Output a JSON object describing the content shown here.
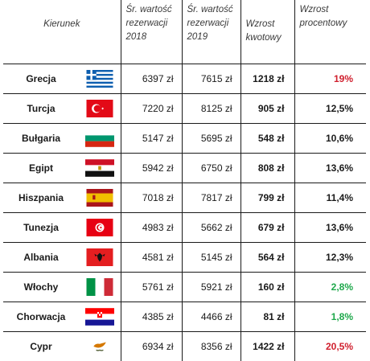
{
  "headers": {
    "destination": "Kierunek",
    "avg2018_line1": "Śr. wartość",
    "avg2018_line2": "rezerwacji",
    "avg2018_line3": "2018",
    "avg2019_line1": "Śr. wartość",
    "avg2019_line2": "rezerwacji",
    "avg2019_line3": "2019",
    "abs_line1": "Wzrost",
    "abs_line2": "kwotowy",
    "pct_line1": "Wzrost",
    "pct_line2": "procentowy"
  },
  "rows": [
    {
      "name": "Grecja",
      "flag": "greece-flag",
      "avg2018": "6397 zł",
      "avg2019": "7615 zł",
      "growth_abs": "1218 zł",
      "growth_pct": "19%",
      "pct_color": "#d0202e"
    },
    {
      "name": "Turcja",
      "flag": "turkey-flag",
      "avg2018": "7220 zł",
      "avg2019": "8125 zł",
      "growth_abs": "905 zł",
      "growth_pct": "12,5%",
      "pct_color": "#1a1a1a"
    },
    {
      "name": "Bułgaria",
      "flag": "bulgaria-flag",
      "avg2018": "5147 zł",
      "avg2019": "5695 zł",
      "growth_abs": "548 zł",
      "growth_pct": "10,6%",
      "pct_color": "#1a1a1a"
    },
    {
      "name": "Egipt",
      "flag": "egypt-flag",
      "avg2018": "5942 zł",
      "avg2019": "6750 zł",
      "growth_abs": "808 zł",
      "growth_pct": "13,6%",
      "pct_color": "#1a1a1a"
    },
    {
      "name": "Hiszpania",
      "flag": "spain-flag",
      "avg2018": "7018 zł",
      "avg2019": "7817 zł",
      "growth_abs": "799 zł",
      "growth_pct": "11,4%",
      "pct_color": "#1a1a1a"
    },
    {
      "name": "Tunezja",
      "flag": "tunisia-flag",
      "avg2018": "4983 zł",
      "avg2019": "5662 zł",
      "growth_abs": "679 zł",
      "growth_pct": "13,6%",
      "pct_color": "#1a1a1a"
    },
    {
      "name": "Albania",
      "flag": "albania-flag",
      "avg2018": "4581 zł",
      "avg2019": "5145 zł",
      "growth_abs": "564 zł",
      "growth_pct": "12,3%",
      "pct_color": "#1a1a1a"
    },
    {
      "name": "Włochy",
      "flag": "italy-flag",
      "avg2018": "5761 zł",
      "avg2019": "5921 zł",
      "growth_abs": "160 zł",
      "growth_pct": "2,8%",
      "pct_color": "#1ea84b"
    },
    {
      "name": "Chorwacja",
      "flag": "croatia-flag",
      "avg2018": "4385 zł",
      "avg2019": "4466 zł",
      "growth_abs": "81 zł",
      "growth_pct": "1,8%",
      "pct_color": "#1ea84b"
    },
    {
      "name": "Cypr",
      "flag": "cyprus-flag",
      "avg2018": "6934 zł",
      "avg2019": "8356 zł",
      "growth_abs": "1422 zł",
      "growth_pct": "20,5%",
      "pct_color": "#d0202e"
    }
  ]
}
